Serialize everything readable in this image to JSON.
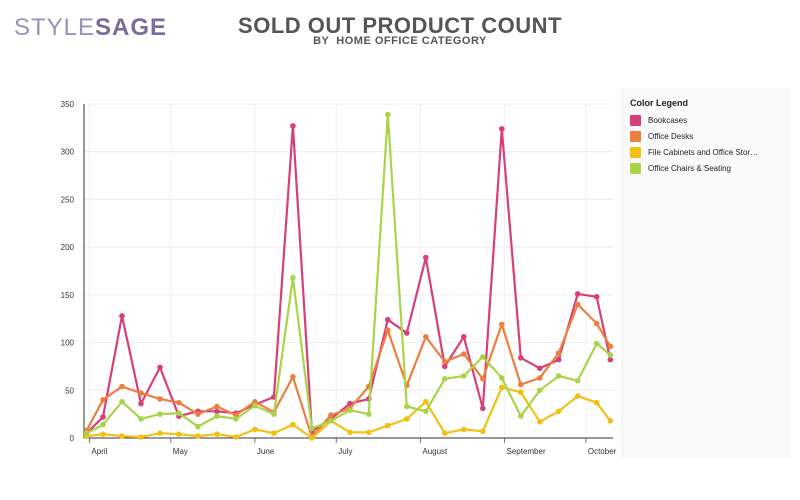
{
  "brand": {
    "part1": "STYLE",
    "part2": "SAGE"
  },
  "header": {
    "title": "SOLD OUT PRODUCT COUNT",
    "subtitle": "BY  HOME OFFICE CATEGORY"
  },
  "legend": {
    "title": "Color Legend",
    "items": [
      {
        "label": "Bookcases",
        "color": "#d63f7a"
      },
      {
        "label": "Office Desks",
        "color": "#ec7f3e"
      },
      {
        "label": "File Cabinets and Office Stor…",
        "color": "#f2c012"
      },
      {
        "label": "Office Chairs & Seating",
        "color": "#a9d44a"
      }
    ]
  },
  "chart_data": {
    "type": "line",
    "title": "SOLD OUT PRODUCT COUNT",
    "subtitle": "BY  HOME OFFICE CATEGORY",
    "xlabel": "",
    "ylabel": "",
    "x_tick_labels": [
      "April",
      "May",
      "June",
      "July",
      "August",
      "September",
      "October"
    ],
    "x_tick_dates": [
      "2019-04-01",
      "2019-05-01",
      "2019-06-01",
      "2019-07-01",
      "2019-08-01",
      "2019-09-01",
      "2019-10-01"
    ],
    "x_range": [
      "2019-03-30",
      "2019-10-11"
    ],
    "y_ticks": [
      0,
      50,
      100,
      150,
      200,
      250,
      300,
      350
    ],
    "ylim": [
      0,
      350
    ],
    "grid": true,
    "legend_position": "right",
    "series": [
      {
        "name": "Bookcases",
        "color": "#d63f7a",
        "points": [
          [
            "2019-03-31",
            5
          ],
          [
            "2019-04-06",
            22
          ],
          [
            "2019-04-13",
            128
          ],
          [
            "2019-04-20",
            36
          ],
          [
            "2019-04-27",
            74
          ],
          [
            "2019-05-04",
            23
          ],
          [
            "2019-05-11",
            28
          ],
          [
            "2019-05-18",
            28
          ],
          [
            "2019-05-25",
            26
          ],
          [
            "2019-06-01",
            35
          ],
          [
            "2019-06-08",
            43
          ],
          [
            "2019-06-15",
            327
          ],
          [
            "2019-06-22",
            7
          ],
          [
            "2019-06-29",
            20
          ],
          [
            "2019-07-06",
            36
          ],
          [
            "2019-07-13",
            41
          ],
          [
            "2019-07-20",
            124
          ],
          [
            "2019-07-27",
            110
          ],
          [
            "2019-08-03",
            189
          ],
          [
            "2019-08-10",
            75
          ],
          [
            "2019-08-17",
            106
          ],
          [
            "2019-08-24",
            31
          ],
          [
            "2019-08-31",
            324
          ],
          [
            "2019-09-07",
            84
          ],
          [
            "2019-09-14",
            73
          ],
          [
            "2019-09-21",
            82
          ],
          [
            "2019-09-28",
            151
          ],
          [
            "2019-10-05",
            148
          ],
          [
            "2019-10-10",
            82
          ]
        ]
      },
      {
        "name": "Office Desks",
        "color": "#ec7f3e",
        "points": [
          [
            "2019-03-31",
            8
          ],
          [
            "2019-04-06",
            40
          ],
          [
            "2019-04-13",
            54
          ],
          [
            "2019-04-20",
            47
          ],
          [
            "2019-04-27",
            41
          ],
          [
            "2019-05-04",
            37
          ],
          [
            "2019-05-11",
            25
          ],
          [
            "2019-05-18",
            33
          ],
          [
            "2019-05-25",
            24
          ],
          [
            "2019-06-01",
            38
          ],
          [
            "2019-06-08",
            27
          ],
          [
            "2019-06-15",
            64
          ],
          [
            "2019-06-22",
            1
          ],
          [
            "2019-06-29",
            24
          ],
          [
            "2019-07-06",
            31
          ],
          [
            "2019-07-13",
            54
          ],
          [
            "2019-07-20",
            113
          ],
          [
            "2019-07-27",
            55
          ],
          [
            "2019-08-03",
            106
          ],
          [
            "2019-08-10",
            80
          ],
          [
            "2019-08-17",
            88
          ],
          [
            "2019-08-24",
            62
          ],
          [
            "2019-08-31",
            119
          ],
          [
            "2019-09-07",
            56
          ],
          [
            "2019-09-14",
            63
          ],
          [
            "2019-09-21",
            89
          ],
          [
            "2019-09-28",
            140
          ],
          [
            "2019-10-05",
            120
          ],
          [
            "2019-10-10",
            96
          ]
        ]
      },
      {
        "name": "File Cabinets and Office Storage",
        "color": "#f2c012",
        "points": [
          [
            "2019-03-31",
            2
          ],
          [
            "2019-04-06",
            4
          ],
          [
            "2019-04-13",
            2
          ],
          [
            "2019-04-20",
            1
          ],
          [
            "2019-04-27",
            5
          ],
          [
            "2019-05-04",
            4
          ],
          [
            "2019-05-11",
            2
          ],
          [
            "2019-05-18",
            4
          ],
          [
            "2019-05-25",
            1
          ],
          [
            "2019-06-01",
            9
          ],
          [
            "2019-06-08",
            5
          ],
          [
            "2019-06-15",
            14
          ],
          [
            "2019-06-22",
            0
          ],
          [
            "2019-06-29",
            18
          ],
          [
            "2019-07-06",
            6
          ],
          [
            "2019-07-13",
            6
          ],
          [
            "2019-07-20",
            13
          ],
          [
            "2019-07-27",
            20
          ],
          [
            "2019-08-03",
            38
          ],
          [
            "2019-08-10",
            5
          ],
          [
            "2019-08-17",
            9
          ],
          [
            "2019-08-24",
            7
          ],
          [
            "2019-08-31",
            53
          ],
          [
            "2019-09-07",
            48
          ],
          [
            "2019-09-14",
            17
          ],
          [
            "2019-09-21",
            28
          ],
          [
            "2019-09-28",
            44
          ],
          [
            "2019-10-05",
            37
          ],
          [
            "2019-10-10",
            18
          ]
        ]
      },
      {
        "name": "Office Chairs & Seating",
        "color": "#a9d44a",
        "points": [
          [
            "2019-03-31",
            5
          ],
          [
            "2019-04-06",
            14
          ],
          [
            "2019-04-13",
            38
          ],
          [
            "2019-04-20",
            20
          ],
          [
            "2019-04-27",
            25
          ],
          [
            "2019-05-04",
            26
          ],
          [
            "2019-05-11",
            12
          ],
          [
            "2019-05-18",
            23
          ],
          [
            "2019-05-25",
            20
          ],
          [
            "2019-06-01",
            34
          ],
          [
            "2019-06-08",
            25
          ],
          [
            "2019-06-15",
            168
          ],
          [
            "2019-06-22",
            10
          ],
          [
            "2019-06-29",
            18
          ],
          [
            "2019-07-06",
            29
          ],
          [
            "2019-07-13",
            25
          ],
          [
            "2019-07-20",
            339
          ],
          [
            "2019-07-27",
            33
          ],
          [
            "2019-08-03",
            28
          ],
          [
            "2019-08-10",
            62
          ],
          [
            "2019-08-17",
            65
          ],
          [
            "2019-08-24",
            85
          ],
          [
            "2019-08-31",
            63
          ],
          [
            "2019-09-07",
            23
          ],
          [
            "2019-09-14",
            50
          ],
          [
            "2019-09-21",
            65
          ],
          [
            "2019-09-28",
            60
          ],
          [
            "2019-10-05",
            99
          ],
          [
            "2019-10-10",
            87
          ]
        ]
      }
    ]
  }
}
